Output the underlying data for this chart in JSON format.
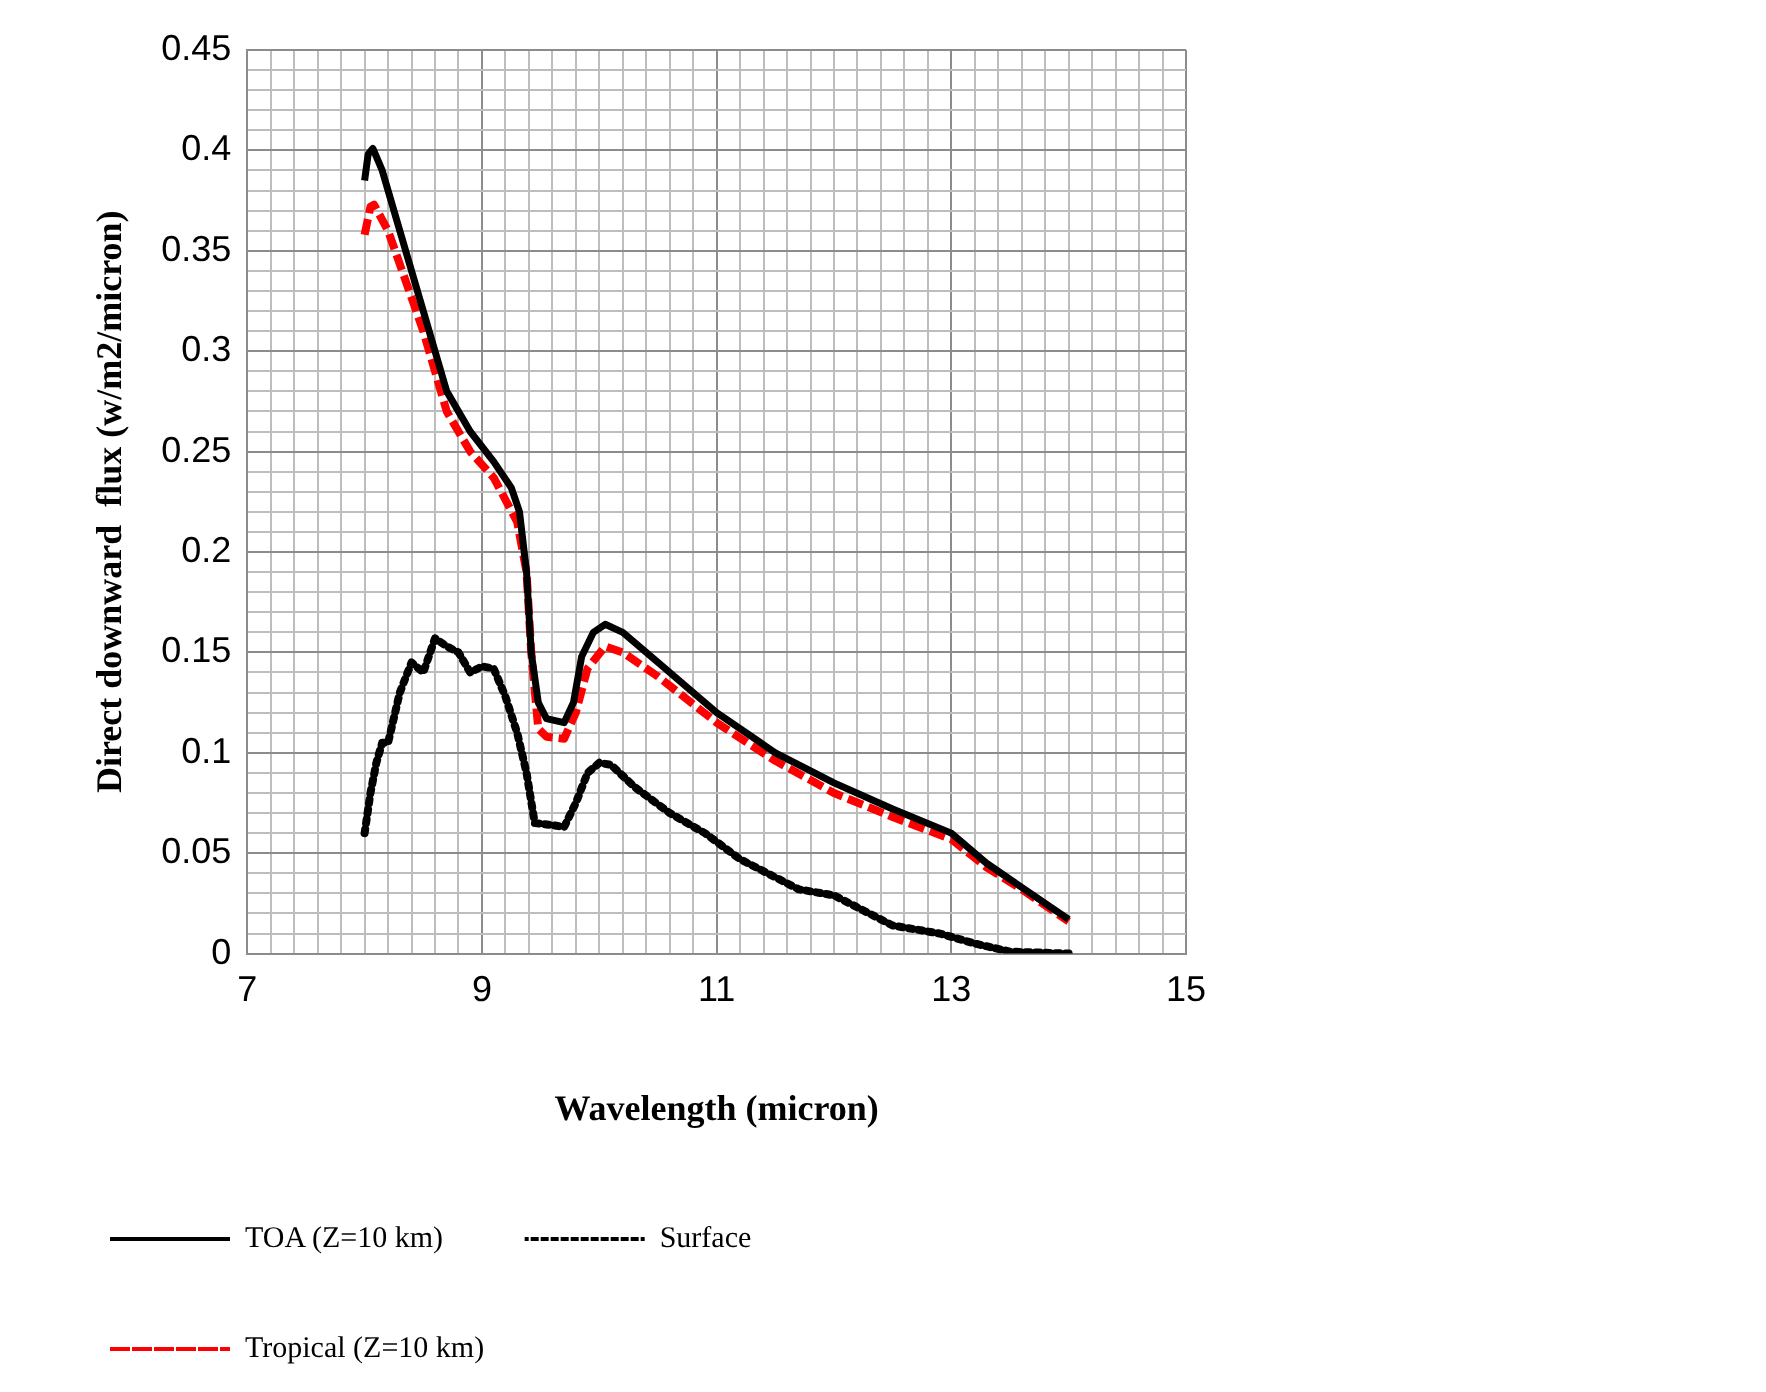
{
  "chart_data": {
    "type": "line",
    "xlabel": "Wavelength (micron)",
    "ylabel": "Direct downward  flux (w/m2/micron)",
    "xlim": [
      7,
      15
    ],
    "ylim": [
      0,
      0.45
    ],
    "xticks": [
      7,
      {
        "value": 7.2,
        "label": null
      },
      {
        "value": 7.4,
        "label": null
      },
      {
        "value": 7.6,
        "label": null
      },
      {
        "value": 7.8,
        "label": null
      },
      {
        "value": 8,
        "label": null
      },
      {
        "value": 8.2,
        "label": null
      },
      {
        "value": 8.4,
        "label": null
      },
      {
        "value": 8.6,
        "label": null
      },
      {
        "value": 8.8,
        "label": null
      },
      9,
      {
        "value": 9.2,
        "label": null
      },
      {
        "value": 9.4,
        "label": null
      },
      {
        "value": 9.6,
        "label": null
      },
      {
        "value": 9.8,
        "label": null
      },
      {
        "value": 10,
        "label": null
      },
      {
        "value": 10.2,
        "label": null
      },
      {
        "value": 10.4,
        "label": null
      },
      {
        "value": 10.6,
        "label": null
      },
      {
        "value": 10.8,
        "label": null
      },
      11,
      {
        "value": 11.2,
        "label": null
      },
      {
        "value": 11.4,
        "label": null
      },
      {
        "value": 11.6,
        "label": null
      },
      {
        "value": 11.8,
        "label": null
      },
      {
        "value": 12,
        "label": null
      },
      {
        "value": 12.2,
        "label": null
      },
      {
        "value": 12.4,
        "label": null
      },
      {
        "value": 12.6,
        "label": null
      },
      {
        "value": 12.8,
        "label": null
      },
      13,
      {
        "value": 13.2,
        "label": null
      },
      {
        "value": 13.4,
        "label": null
      },
      {
        "value": 13.6,
        "label": null
      },
      {
        "value": 13.8,
        "label": null
      },
      {
        "value": 14,
        "label": null
      },
      {
        "value": 14.2,
        "label": null
      },
      {
        "value": 14.4,
        "label": null
      },
      {
        "value": 14.6,
        "label": null
      },
      {
        "value": 14.8,
        "label": null
      },
      15
    ],
    "yticks": [
      0,
      {
        "value": 0.01,
        "label": null
      },
      {
        "value": 0.02,
        "label": null
      },
      {
        "value": 0.03,
        "label": null
      },
      {
        "value": 0.04,
        "label": null
      },
      0.05,
      {
        "value": 0.06,
        "label": null
      },
      {
        "value": 0.07,
        "label": null
      },
      {
        "value": 0.08,
        "label": null
      },
      {
        "value": 0.09,
        "label": null
      },
      0.1,
      {
        "value": 0.11,
        "label": null
      },
      {
        "value": 0.12,
        "label": null
      },
      {
        "value": 0.13,
        "label": null
      },
      {
        "value": 0.14,
        "label": null
      },
      0.15,
      {
        "value": 0.16,
        "label": null
      },
      {
        "value": 0.17,
        "label": null
      },
      {
        "value": 0.18,
        "label": null
      },
      {
        "value": 0.19,
        "label": null
      },
      0.2,
      {
        "value": 0.21,
        "label": null
      },
      {
        "value": 0.22,
        "label": null
      },
      {
        "value": 0.23,
        "label": null
      },
      {
        "value": 0.24,
        "label": null
      },
      0.25,
      {
        "value": 0.26,
        "label": null
      },
      {
        "value": 0.27,
        "label": null
      },
      {
        "value": 0.28,
        "label": null
      },
      {
        "value": 0.29,
        "label": null
      },
      0.3,
      {
        "value": 0.31,
        "label": null
      },
      {
        "value": 0.32,
        "label": null
      },
      {
        "value": 0.33,
        "label": null
      },
      {
        "value": 0.34,
        "label": null
      },
      0.35,
      {
        "value": 0.36,
        "label": null
      },
      {
        "value": 0.37,
        "label": null
      },
      {
        "value": 0.38,
        "label": null
      },
      {
        "value": 0.39,
        "label": null
      },
      0.4,
      {
        "value": 0.41,
        "label": null
      },
      {
        "value": 0.42,
        "label": null
      },
      {
        "value": 0.43,
        "label": null
      },
      {
        "value": 0.44,
        "label": null
      },
      0.45
    ],
    "grid": true,
    "legend": "bottom",
    "marker": "none",
    "series": [
      {
        "name": "TOA (Z=10 km)",
        "color": "#000000",
        "line_style": "solid",
        "x": [
          8.0,
          8.03,
          8.07,
          8.15,
          8.3,
          8.5,
          8.7,
          8.9,
          9.1,
          9.25,
          9.32,
          9.38,
          9.42,
          9.48,
          9.55,
          9.7,
          9.78,
          9.85,
          9.95,
          10.05,
          10.2,
          10.5,
          11.0,
          11.5,
          12.0,
          12.5,
          13.0,
          13.3,
          13.6,
          14.0
        ],
        "values": [
          0.385,
          0.398,
          0.401,
          0.39,
          0.36,
          0.32,
          0.28,
          0.26,
          0.245,
          0.232,
          0.22,
          0.19,
          0.15,
          0.125,
          0.117,
          0.115,
          0.125,
          0.148,
          0.16,
          0.164,
          0.16,
          0.145,
          0.12,
          0.1,
          0.085,
          0.072,
          0.06,
          0.045,
          0.033,
          0.017
        ]
      },
      {
        "name": "Surface",
        "color": "#000000",
        "line_style": "dotted",
        "x": [
          8.0,
          8.05,
          8.1,
          8.15,
          8.2,
          8.3,
          8.4,
          8.5,
          8.6,
          8.7,
          8.8,
          8.9,
          9.0,
          9.1,
          9.2,
          9.3,
          9.38,
          9.45,
          9.6,
          9.7,
          9.8,
          9.9,
          10.0,
          10.1,
          10.3,
          10.6,
          10.9,
          11.2,
          11.5,
          11.7,
          12.0,
          12.3,
          12.5,
          12.9,
          13.2,
          13.5,
          14.0
        ],
        "values": [
          0.06,
          0.08,
          0.095,
          0.105,
          0.105,
          0.13,
          0.145,
          0.14,
          0.157,
          0.153,
          0.15,
          0.14,
          0.143,
          0.142,
          0.128,
          0.11,
          0.09,
          0.065,
          0.064,
          0.063,
          0.075,
          0.09,
          0.095,
          0.094,
          0.083,
          0.07,
          0.06,
          0.047,
          0.038,
          0.032,
          0.029,
          0.02,
          0.014,
          0.01,
          0.005,
          0.001,
          0.0
        ]
      },
      {
        "name": "Tropical (Z=10 km)",
        "color": "#ff0000",
        "line_style": "dashed",
        "x": [
          8.0,
          8.05,
          8.08,
          8.2,
          8.5,
          8.7,
          8.9,
          9.1,
          9.3,
          9.38,
          9.42,
          9.48,
          9.55,
          9.7,
          9.8,
          9.9,
          10.05,
          10.2,
          10.5,
          11.0,
          11.5,
          12.0,
          12.5,
          13.0,
          13.3,
          13.6,
          14.0
        ],
        "values": [
          0.358,
          0.372,
          0.373,
          0.36,
          0.31,
          0.27,
          0.25,
          0.237,
          0.215,
          0.19,
          0.15,
          0.112,
          0.108,
          0.107,
          0.12,
          0.142,
          0.153,
          0.15,
          0.138,
          0.115,
          0.096,
          0.08,
          0.068,
          0.057,
          0.043,
          0.032,
          0.016
        ]
      }
    ]
  }
}
